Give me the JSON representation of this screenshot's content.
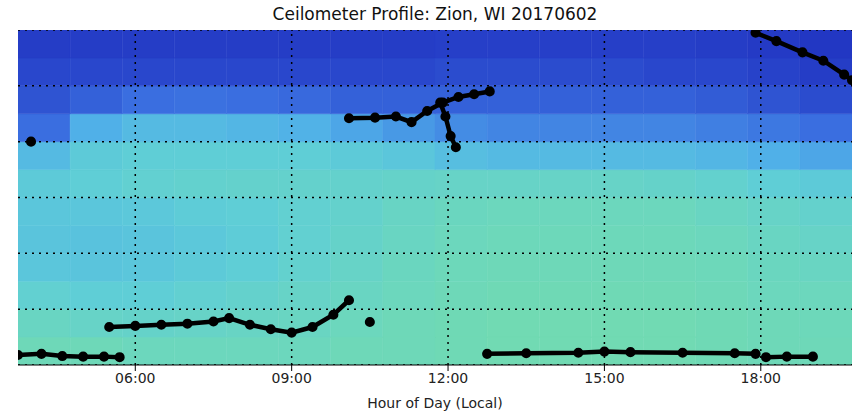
{
  "chart_data": {
    "type": "heatmap",
    "title": "Ceilometer Profile: Zion, WI 20170602",
    "x_label": "Hour of Day (Local)",
    "xlim": [
      3.75,
      19.75
    ],
    "xticks": [
      {
        "value": 6,
        "label": "06:00"
      },
      {
        "value": 9,
        "label": "09:00"
      },
      {
        "value": 12,
        "label": "12:00"
      },
      {
        "value": 15,
        "label": "15:00"
      },
      {
        "value": 18,
        "label": "18:00"
      }
    ],
    "ylim": [
      0,
      6
    ],
    "yticks": [
      0,
      1,
      2,
      3,
      4,
      5,
      6
    ],
    "tick_labels": "x",
    "grid": true,
    "heatmap": {
      "x_edges": [
        3.75,
        4.75,
        5.75,
        6.75,
        7.75,
        8.75,
        9.75,
        10.75,
        11.75,
        12.75,
        13.75,
        14.75,
        15.75,
        16.75,
        17.75,
        18.75,
        19.75
      ],
      "y_edges": [
        0,
        0.5,
        1,
        1.5,
        2,
        2.5,
        3,
        3.5,
        4,
        4.5,
        5,
        5.5,
        6
      ],
      "color_range": [
        0,
        1
      ],
      "cells": [
        [
          0.72,
          0.72,
          0.7,
          0.7,
          0.7,
          0.7,
          0.72,
          0.72,
          0.73,
          0.74,
          0.74,
          0.74,
          0.74,
          0.73,
          0.72,
          0.72
        ],
        [
          0.68,
          0.66,
          0.65,
          0.66,
          0.67,
          0.68,
          0.7,
          0.72,
          0.73,
          0.74,
          0.74,
          0.74,
          0.74,
          0.73,
          0.72,
          0.71
        ],
        [
          0.62,
          0.6,
          0.6,
          0.62,
          0.64,
          0.66,
          0.68,
          0.7,
          0.72,
          0.73,
          0.73,
          0.73,
          0.73,
          0.72,
          0.7,
          0.7
        ],
        [
          0.56,
          0.55,
          0.56,
          0.58,
          0.6,
          0.63,
          0.66,
          0.69,
          0.71,
          0.72,
          0.72,
          0.72,
          0.72,
          0.71,
          0.69,
          0.68
        ],
        [
          0.55,
          0.54,
          0.55,
          0.57,
          0.59,
          0.62,
          0.65,
          0.68,
          0.7,
          0.71,
          0.71,
          0.71,
          0.71,
          0.7,
          0.68,
          0.66
        ],
        [
          0.56,
          0.56,
          0.57,
          0.59,
          0.6,
          0.62,
          0.64,
          0.67,
          0.69,
          0.7,
          0.7,
          0.7,
          0.7,
          0.68,
          0.66,
          0.64
        ],
        [
          0.58,
          0.6,
          0.62,
          0.63,
          0.64,
          0.64,
          0.64,
          0.65,
          0.66,
          0.66,
          0.66,
          0.66,
          0.65,
          0.63,
          0.6,
          0.58
        ],
        [
          0.5,
          0.58,
          0.6,
          0.6,
          0.6,
          0.6,
          0.58,
          0.56,
          0.52,
          0.5,
          0.5,
          0.5,
          0.5,
          0.48,
          0.45,
          0.42
        ],
        [
          0.25,
          0.45,
          0.5,
          0.5,
          0.48,
          0.46,
          0.42,
          0.38,
          0.34,
          0.32,
          0.32,
          0.32,
          0.32,
          0.3,
          0.28,
          0.25
        ],
        [
          0.15,
          0.2,
          0.25,
          0.26,
          0.25,
          0.23,
          0.2,
          0.2,
          0.2,
          0.2,
          0.2,
          0.2,
          0.2,
          0.18,
          0.15,
          0.12
        ],
        [
          0.1,
          0.1,
          0.1,
          0.1,
          0.1,
          0.1,
          0.1,
          0.1,
          0.12,
          0.12,
          0.12,
          0.12,
          0.1,
          0.1,
          0.08,
          0.06
        ],
        [
          0.06,
          0.06,
          0.06,
          0.06,
          0.06,
          0.06,
          0.06,
          0.06,
          0.07,
          0.07,
          0.07,
          0.07,
          0.07,
          0.06,
          0.05,
          0.04
        ]
      ]
    },
    "series": [
      {
        "type": "line",
        "color": "#000000",
        "marker": "circle",
        "line_style": "solid",
        "x": [
          3.75,
          4.2,
          4.6,
          5.0,
          5.4,
          5.7
        ],
        "values": [
          0.18,
          0.2,
          0.16,
          0.15,
          0.15,
          0.14
        ]
      },
      {
        "type": "line",
        "color": "#000000",
        "marker": "circle",
        "line_style": "solid",
        "x": [
          5.5,
          6.0,
          6.5,
          7.0,
          7.5,
          7.8,
          8.2,
          8.6,
          9.0,
          9.4,
          9.8,
          10.1
        ],
        "values": [
          0.68,
          0.7,
          0.72,
          0.74,
          0.78,
          0.84,
          0.72,
          0.64,
          0.58,
          0.68,
          0.9,
          1.16
        ]
      },
      {
        "type": "line",
        "color": "#000000",
        "marker": "circle",
        "line_style": "solid",
        "x": [
          10.5
        ],
        "values": [
          0.77
        ]
      },
      {
        "type": "line",
        "color": "#000000",
        "marker": "circle",
        "line_style": "solid",
        "x": [
          12.75,
          13.5,
          14.5,
          15.0,
          15.5,
          16.5,
          17.5,
          17.9
        ],
        "values": [
          0.2,
          0.21,
          0.22,
          0.24,
          0.23,
          0.22,
          0.21,
          0.2
        ]
      },
      {
        "type": "line",
        "color": "#000000",
        "marker": "circle",
        "line_style": "solid",
        "x": [
          18.1,
          18.5,
          19.0
        ],
        "values": [
          0.14,
          0.15,
          0.15
        ]
      },
      {
        "type": "line",
        "color": "#000000",
        "marker": "circle",
        "line_style": "solid",
        "x": [
          10.1,
          10.6,
          11.0,
          11.3,
          11.6,
          11.9,
          12.2,
          12.5,
          12.8
        ],
        "values": [
          4.42,
          4.43,
          4.45,
          4.35,
          4.55,
          4.7,
          4.8,
          4.85,
          4.9
        ]
      },
      {
        "type": "line",
        "color": "#000000",
        "marker": "circle",
        "line_style": "solid",
        "x": [
          11.85,
          11.95,
          12.05,
          12.15
        ],
        "values": [
          4.7,
          4.45,
          4.1,
          3.9
        ]
      },
      {
        "type": "line",
        "color": "#000000",
        "marker": "circle",
        "line_style": "solid",
        "x": [
          4.0
        ],
        "values": [
          4.0
        ]
      },
      {
        "type": "line",
        "color": "#000000",
        "marker": "circle",
        "line_style": "solid",
        "x": [
          17.9,
          18.3,
          18.8,
          19.2,
          19.6,
          19.75
        ],
        "values": [
          5.95,
          5.8,
          5.6,
          5.45,
          5.2,
          5.1
        ]
      }
    ]
  }
}
